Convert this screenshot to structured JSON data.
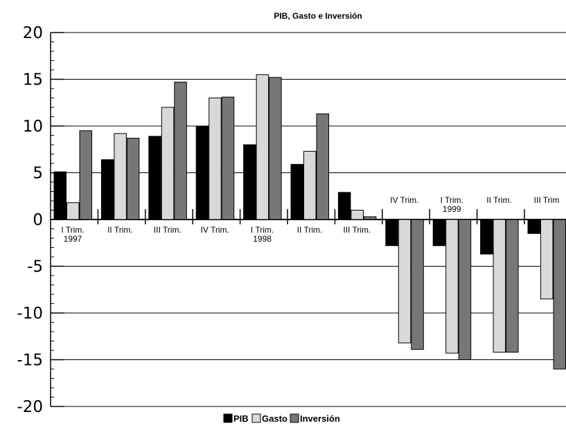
{
  "chart_data": {
    "type": "bar",
    "title": "PIB, Gasto e Inversión",
    "xlabel": "",
    "ylabel": "",
    "ylim": [
      -20,
      20
    ],
    "yticks": [
      20,
      15,
      10,
      5,
      0,
      -5,
      -10,
      -15,
      -20
    ],
    "grid": true,
    "legend_position": "bottom",
    "categories": [
      [
        "I Trim.",
        "1997"
      ],
      [
        "II Trim."
      ],
      [
        "III Trim."
      ],
      [
        "IV Trim."
      ],
      [
        "I Trim.",
        "1998"
      ],
      [
        "II Trim."
      ],
      [
        "III Trim."
      ],
      [
        "IV Trim."
      ],
      [
        "I Trim.",
        "1999"
      ],
      [
        "II Trim."
      ],
      [
        "III Trim"
      ]
    ],
    "series": [
      {
        "name": "PIB",
        "color": "#000000",
        "values": [
          5.1,
          6.4,
          8.9,
          10.0,
          8.0,
          5.9,
          2.9,
          -2.8,
          -2.8,
          -3.7,
          -1.5
        ]
      },
      {
        "name": "Gasto",
        "color": "#d9d9d9",
        "values": [
          1.8,
          9.2,
          12.0,
          13.0,
          15.5,
          7.3,
          1.0,
          -13.2,
          -14.3,
          -14.2,
          -8.5
        ]
      },
      {
        "name": "Inversión",
        "color": "#777777",
        "values": [
          9.5,
          8.7,
          14.7,
          13.1,
          15.2,
          11.3,
          0.3,
          -13.9,
          -15.0,
          -14.2,
          -16.0
        ]
      }
    ]
  }
}
